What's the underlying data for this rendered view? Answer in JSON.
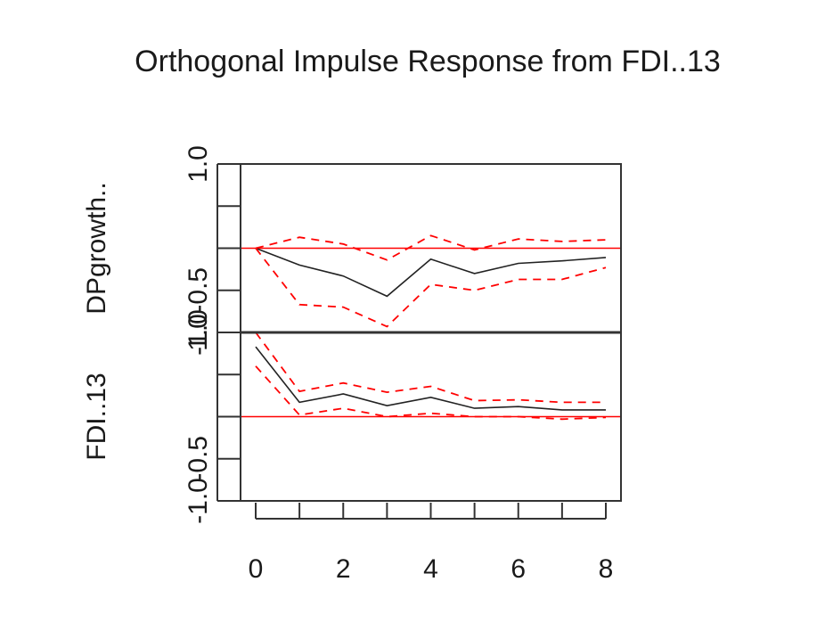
{
  "chart_data": {
    "type": "line",
    "title": "Orthogonal Impulse Response from FDI..13",
    "x": [
      0,
      1,
      2,
      3,
      4,
      5,
      6,
      7,
      8
    ],
    "x_ticks": [
      "0",
      "2",
      "4",
      "6",
      "8"
    ],
    "x_tick_values": [
      0,
      2,
      4,
      6,
      8
    ],
    "xlim": [
      0,
      8
    ],
    "colors": {
      "response": "#222222",
      "ci": "#ff0000",
      "zero": "#ff0000",
      "axis": "#333333"
    },
    "panels": [
      {
        "name": "DPgrowth..",
        "ylabel": "DPgrowth..",
        "ylim": [
          -1.0,
          1.0
        ],
        "y_ticks": [
          "-1.0",
          "-0.5",
          "1.0"
        ],
        "y_tick_values": [
          -1.0,
          -0.5,
          1.0
        ],
        "zero": 0.0,
        "series": [
          {
            "name": "response",
            "values": [
              0.0,
              -0.2,
              -0.33,
              -0.57,
              -0.13,
              -0.3,
              -0.18,
              -0.15,
              -0.11
            ]
          },
          {
            "name": "upper",
            "values": [
              0.0,
              0.13,
              0.05,
              -0.14,
              0.15,
              -0.02,
              0.11,
              0.08,
              0.1
            ]
          },
          {
            "name": "lower",
            "values": [
              0.0,
              -0.67,
              -0.7,
              -0.93,
              -0.43,
              -0.5,
              -0.37,
              -0.37,
              -0.23
            ]
          }
        ]
      },
      {
        "name": "FDI..13",
        "ylabel": "FDI..13",
        "ylim": [
          -1.0,
          1.0
        ],
        "y_ticks": [
          "-1.0",
          "-0.5",
          "1.0"
        ],
        "y_tick_values": [
          -1.0,
          -0.5,
          1.0
        ],
        "zero": 0.0,
        "series": [
          {
            "name": "response",
            "values": [
              0.83,
              0.17,
              0.27,
              0.13,
              0.23,
              0.1,
              0.12,
              0.08,
              0.08
            ]
          },
          {
            "name": "upper",
            "values": [
              1.0,
              0.3,
              0.4,
              0.29,
              0.36,
              0.19,
              0.2,
              0.17,
              0.17
            ]
          },
          {
            "name": "lower",
            "values": [
              0.6,
              0.02,
              0.1,
              0.0,
              0.04,
              0.0,
              0.0,
              -0.03,
              -0.01
            ]
          }
        ]
      }
    ]
  }
}
